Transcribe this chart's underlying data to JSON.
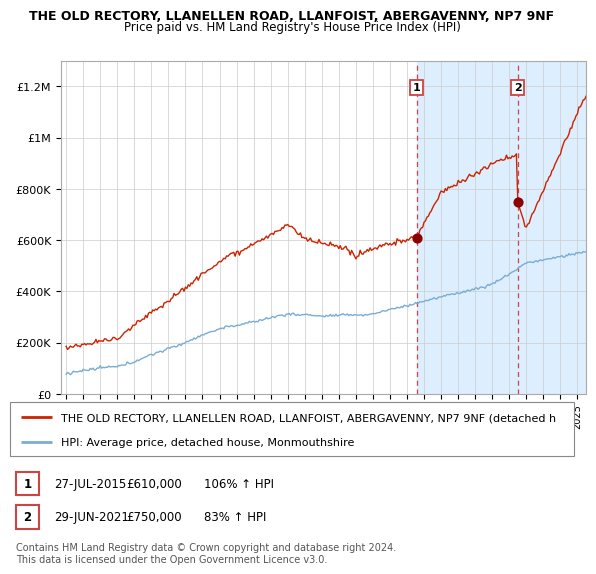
{
  "title_line1": "THE OLD RECTORY, LLANELLEN ROAD, LLANFOIST, ABERGAVENNY, NP7 9NF",
  "title_line2": "Price paid vs. HM Land Registry's House Price Index (HPI)",
  "ylim": [
    0,
    1300000
  ],
  "yticks": [
    0,
    200000,
    400000,
    600000,
    800000,
    1000000,
    1200000
  ],
  "ytick_labels": [
    "£0",
    "£200K",
    "£400K",
    "£600K",
    "£800K",
    "£1M",
    "£1.2M"
  ],
  "xstart_year": 1995,
  "xend_year": 2026,
  "sale1_year": 2015.57,
  "sale1_price": 610000,
  "sale1_label": "1",
  "sale2_year": 2021.49,
  "sale2_price": 750000,
  "sale2_label": "2",
  "hpi_color": "#7aadd4",
  "price_color": "#cc2200",
  "sale_dot_color": "#8b0000",
  "vline_color": "#cc4444",
  "highlight_color": "#ddeeff",
  "background_color": "#ffffff",
  "grid_color": "#cccccc",
  "legend_label_price": "THE OLD RECTORY, LLANELLEN ROAD, LLANFOIST, ABERGAVENNY, NP7 9NF (detached h",
  "legend_label_hpi": "HPI: Average price, detached house, Monmouthshire",
  "table_row1": [
    "1",
    "27-JUL-2015",
    "£610,000",
    "106% ↑ HPI"
  ],
  "table_row2": [
    "2",
    "29-JUN-2021",
    "£750,000",
    "83% ↑ HPI"
  ],
  "footer": "Contains HM Land Registry data © Crown copyright and database right 2024.\nThis data is licensed under the Open Government Licence v3.0.",
  "title_fontsize": 9.0,
  "subtitle_fontsize": 8.5,
  "axis_fontsize": 8,
  "legend_fontsize": 8
}
